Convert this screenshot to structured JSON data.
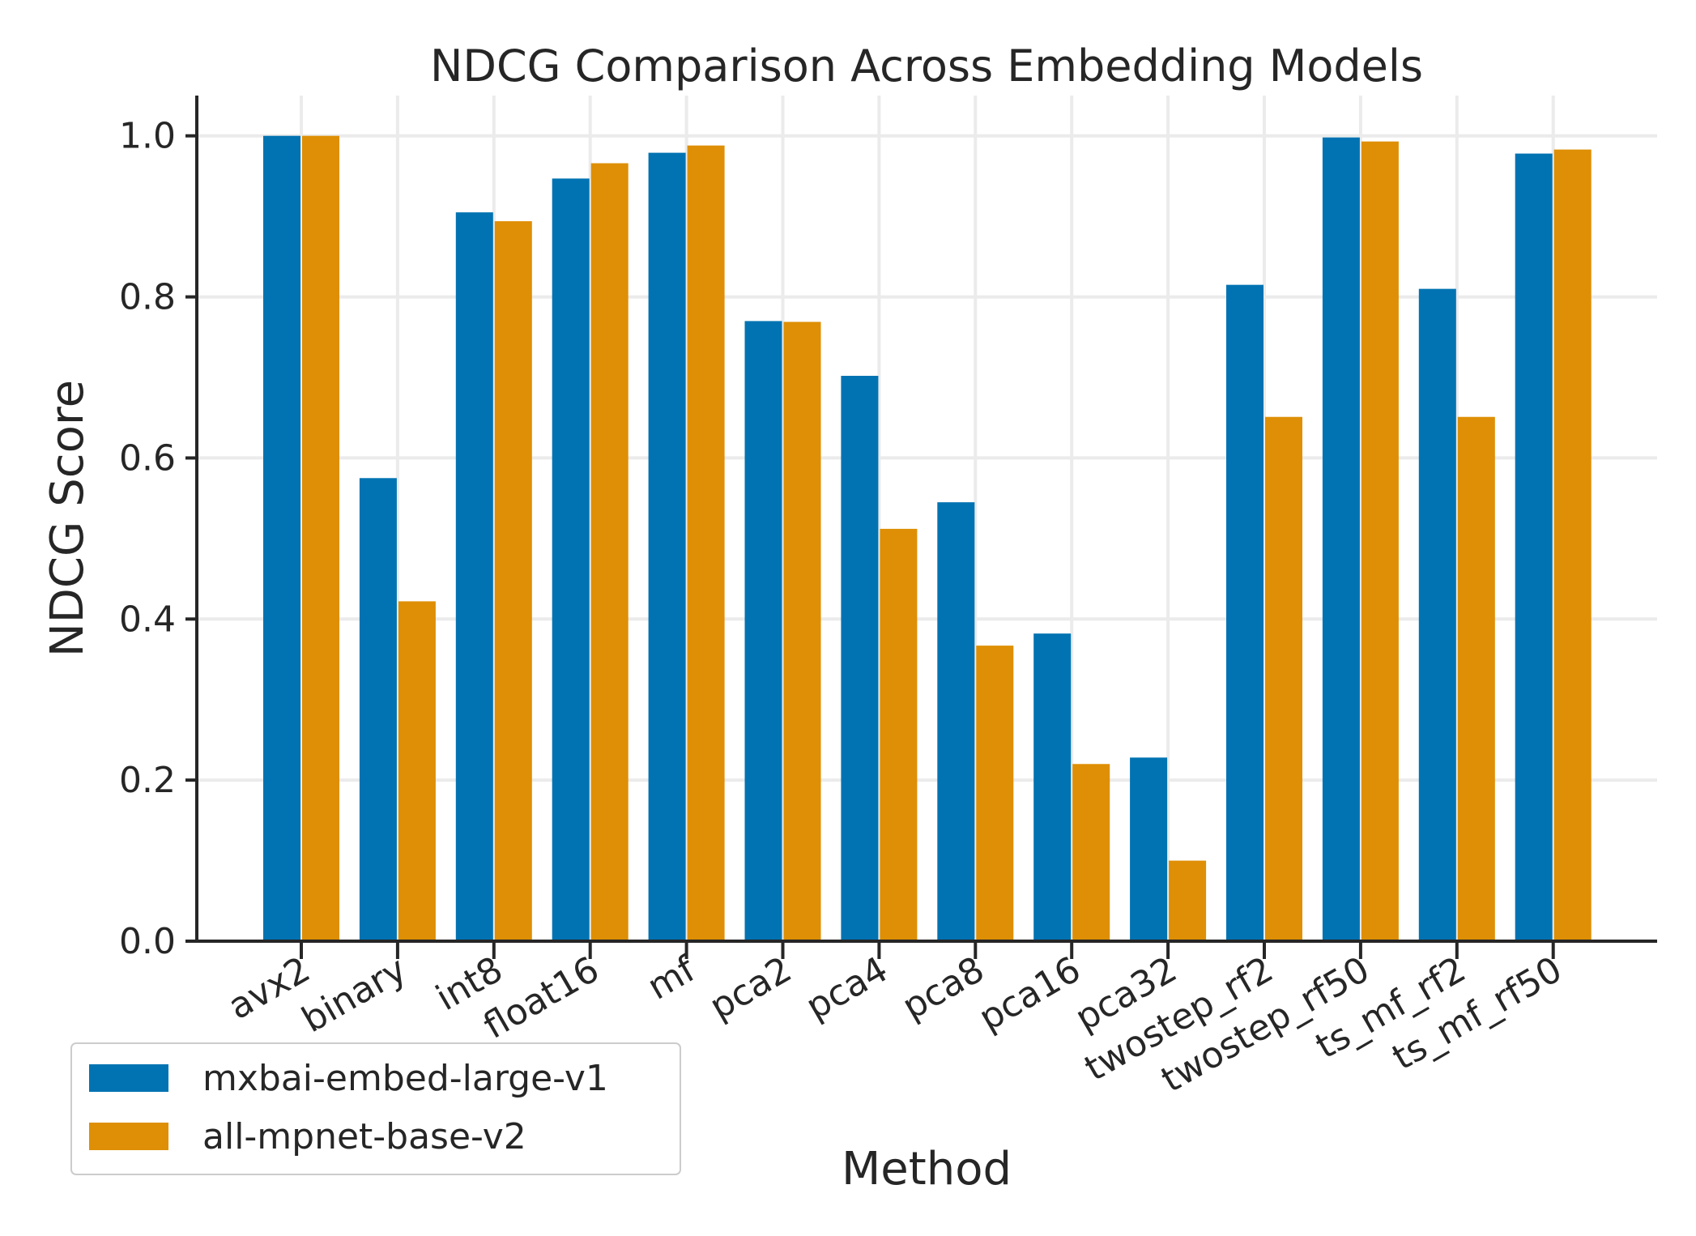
{
  "chart_data": {
    "type": "bar",
    "title": "NDCG Comparison Across Embedding Models",
    "xlabel": "Method",
    "ylabel": "NDCG Score",
    "ylim": [
      0,
      1.05
    ],
    "yticks": [
      "0.0",
      "0.2",
      "0.4",
      "0.6",
      "0.8",
      "1.0"
    ],
    "grid": true,
    "legend_position": "lower-left",
    "categories": [
      "avx2",
      "binary",
      "int8",
      "float16",
      "mf",
      "pca2",
      "pca4",
      "pca8",
      "pca16",
      "pca32",
      "twostep_rf2",
      "twostep_rf50",
      "ts_mf_rf2",
      "ts_mf_rf50"
    ],
    "series": [
      {
        "name": "mxbai-embed-large-v1",
        "color": "#0173b2",
        "values": [
          1.0,
          0.575,
          0.905,
          0.947,
          0.979,
          0.77,
          0.702,
          0.545,
          0.382,
          0.228,
          0.815,
          0.998,
          0.81,
          0.978
        ]
      },
      {
        "name": "all-mpnet-base-v2",
        "color": "#de8f05",
        "values": [
          1.0,
          0.422,
          0.894,
          0.966,
          0.988,
          0.769,
          0.512,
          0.367,
          0.22,
          0.1,
          0.651,
          0.993,
          0.651,
          0.983
        ]
      }
    ]
  }
}
